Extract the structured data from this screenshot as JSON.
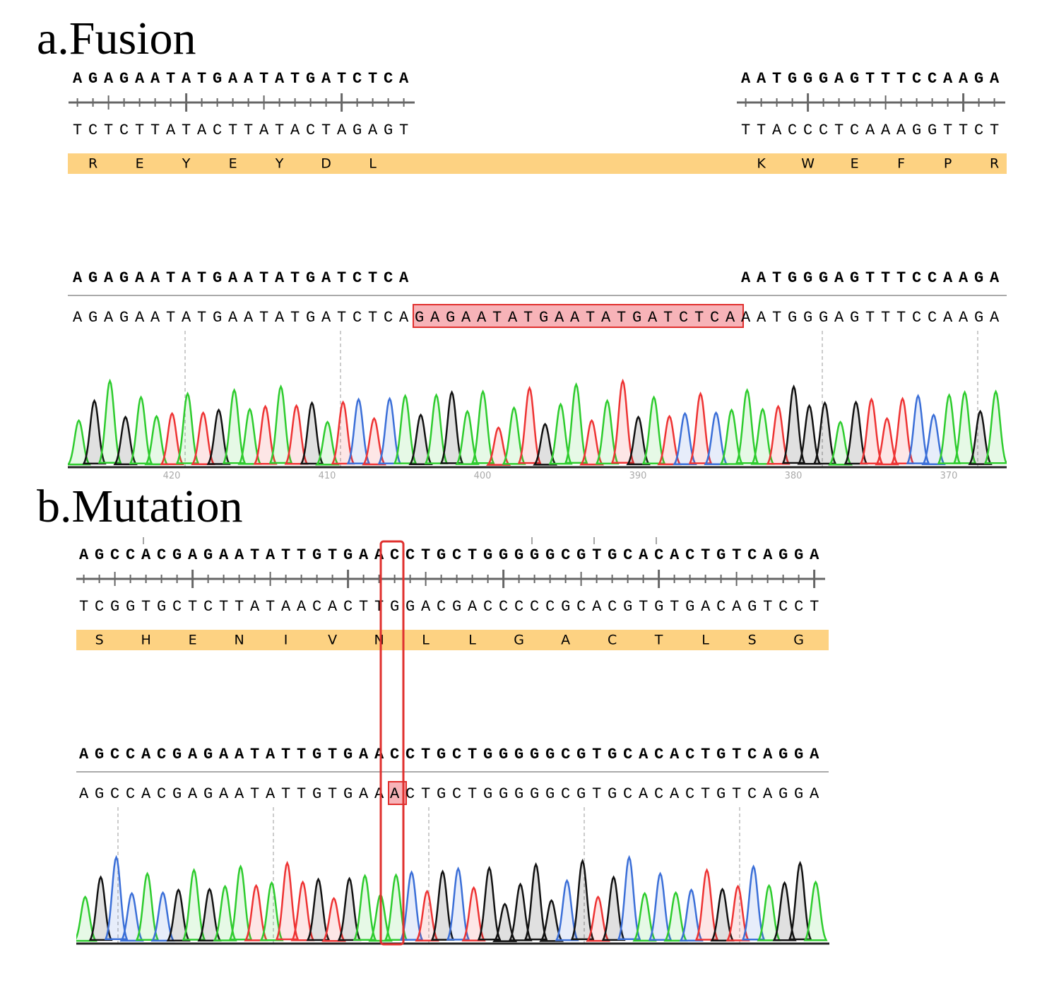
{
  "fusion": {
    "label": "a.Fusion",
    "reference": {
      "top_left": "AGAGAATATGAATATGATCTCA",
      "bottom_left": "TCTCTTATACTTATACTAGAGT",
      "top_right": "AATGGGAGTTTCCAAGA",
      "bottom_right": "TTACCCTCAAAGGTTCT",
      "aa_left": [
        "R",
        "E",
        "Y",
        "E",
        "Y",
        "D",
        "L"
      ],
      "aa_right": [
        "K",
        "W",
        "E",
        "F",
        "P",
        "R"
      ]
    },
    "alignment": {
      "ref_left": "AGAGAATATGAATATGATCTCA",
      "ref_right": "AATGGGAGTTTCCAAGA",
      "read_before": "AGAGAATATGAATATGATCTCA",
      "read_insert": "GAGAATATGAATATGATCTCA",
      "read_after": "AATGGGAGTTTCCAAGA"
    },
    "positions": [
      "420",
      "410",
      "400",
      "390",
      "380",
      "370"
    ]
  },
  "mutation": {
    "label": "b.Mutation",
    "reference": {
      "top": "AGCCACGAGAATATTGTGAACCTGCTGGGGGCGTGCACACTGTCAGGA",
      "bottom": "TCGGTGCTCTTATAACACTTGGACGACCCCCGCACGTGTGACAGTCCT",
      "aa": [
        "S",
        "H",
        "E",
        "N",
        "I",
        "V",
        "N",
        "L",
        "L",
        "G",
        "A",
        "C",
        "T",
        "L",
        "S",
        "G"
      ]
    },
    "alignment": {
      "ref": "AGCCACGAGAATATTGTGAACCTGCTGGGGGCGTGCACACTGTCAGGA",
      "read_before": "AGCCACGAGAATATTGTGAA",
      "read_variant": "A",
      "read_after": "CTGCTGGGGGCGTGCACACTGTCAGGA"
    }
  }
}
